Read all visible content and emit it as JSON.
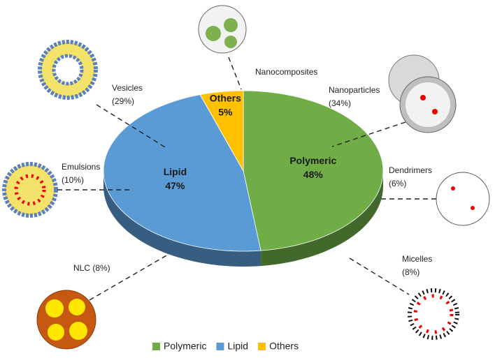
{
  "chart_data": {
    "type": "pie",
    "categories": [
      "Polymeric",
      "Lipid",
      "Others"
    ],
    "values": [
      48,
      47,
      5
    ],
    "value_labels": [
      "48%",
      "47%",
      "5%"
    ],
    "colors": [
      "#70ad47",
      "#5b9bd5",
      "#ffc000"
    ],
    "legend": "bottom",
    "annotations": [
      {
        "lines": [
          "Nanocomposites"
        ]
      },
      {
        "lines": [
          "Nanoparticles",
          "(34%)"
        ]
      },
      {
        "lines": [
          "Dendrimers",
          "(6%)"
        ]
      },
      {
        "lines": [
          "Micelles",
          "(8%)"
        ]
      },
      {
        "lines": [
          "Vesicles",
          "(29%)"
        ]
      },
      {
        "lines": [
          "Emulsions",
          "(10%)"
        ]
      },
      {
        "lines": [
          "NLC (8%)"
        ]
      }
    ]
  }
}
